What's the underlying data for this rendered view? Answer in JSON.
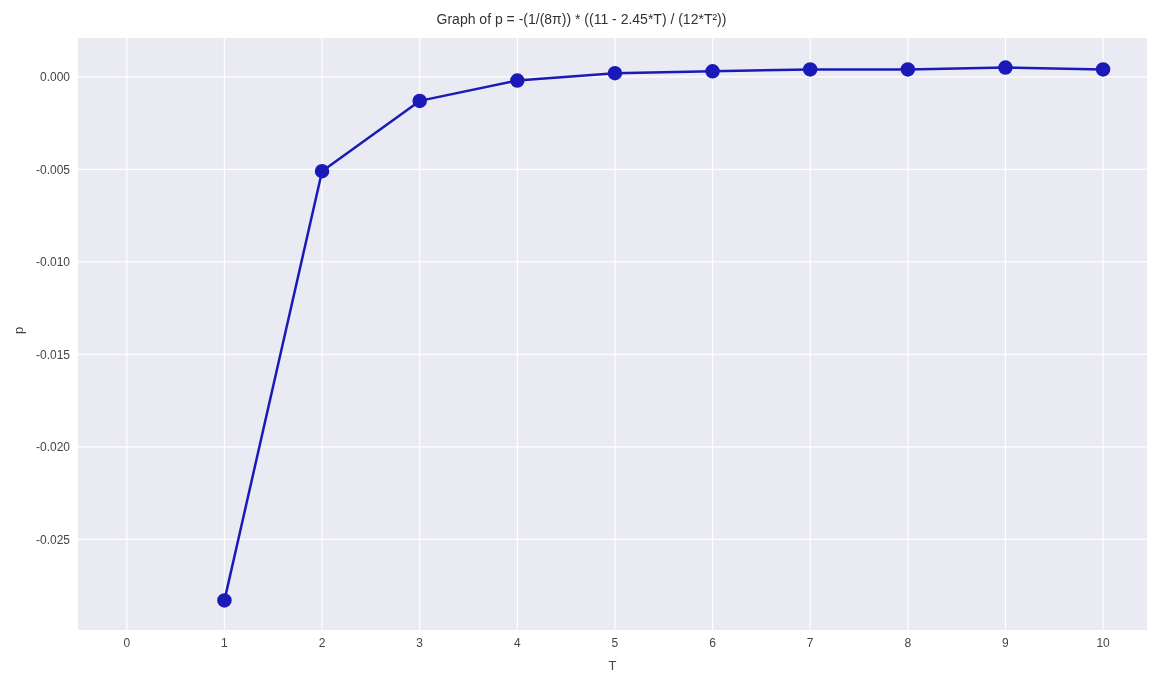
{
  "chart_data": {
    "type": "line",
    "title": "Graph of p = -(1/(8π)) * ((11 - 2.45*T) / (12*T²))",
    "xlabel": "T",
    "ylabel": "p",
    "x": [
      1,
      2,
      3,
      4,
      5,
      6,
      7,
      8,
      9,
      10
    ],
    "series": [
      {
        "color": "#1a1ab8",
        "values": [
          -0.0283,
          -0.0051,
          -0.0013,
          -0.0002,
          0.0002,
          0.0003,
          0.0004,
          0.0004,
          0.0005,
          0.0004
        ]
      }
    ],
    "xlim": [
      -0.5,
      10.45
    ],
    "xticks": [
      0,
      1,
      2,
      3,
      4,
      5,
      6,
      7,
      8,
      9,
      10
    ],
    "ylim": [
      -0.0299,
      0.0021
    ],
    "yticks": [
      {
        "value": 0,
        "label": "0.000"
      },
      {
        "value": -0.005,
        "label": "-0.005"
      },
      {
        "value": -0.01,
        "label": "-0.010"
      },
      {
        "value": -0.015,
        "label": "-0.015"
      },
      {
        "value": -0.02,
        "label": "-0.020"
      },
      {
        "value": -0.025,
        "label": "-0.025"
      }
    ],
    "grid": true,
    "marker": "circle",
    "line_style": "solid"
  }
}
